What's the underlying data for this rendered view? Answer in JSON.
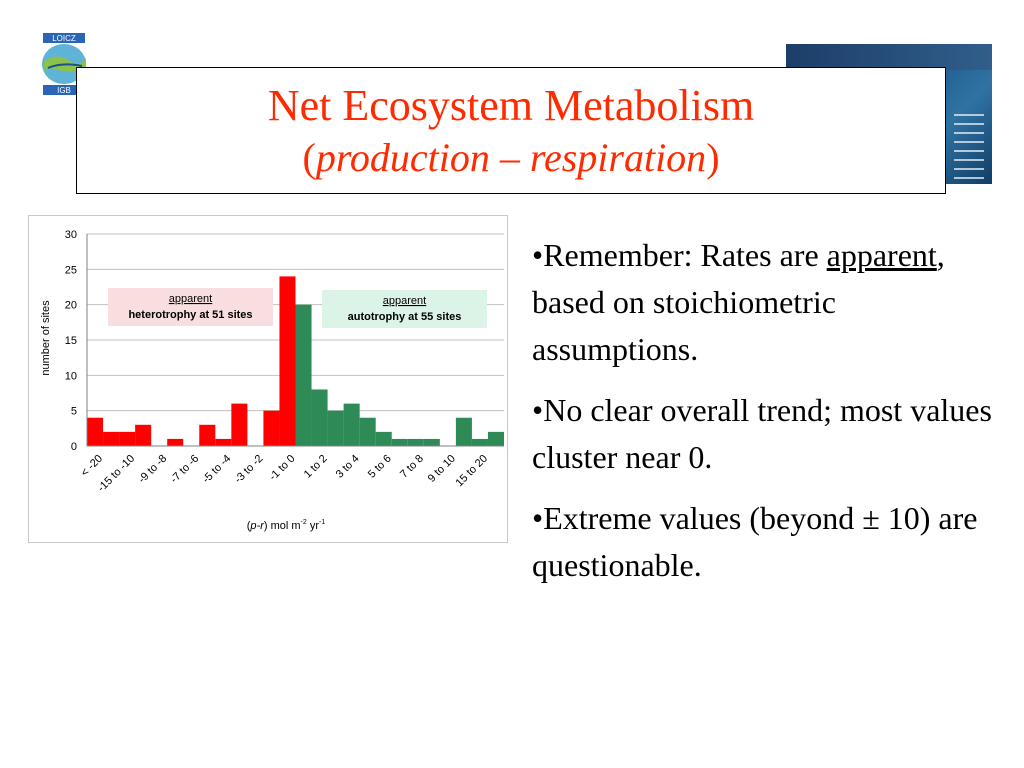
{
  "title": {
    "line1": "Net Ecosystem Metabolism",
    "line2_open": "(",
    "line2_italic": "production – respiration",
    "line2_close": ")"
  },
  "logo": {
    "top_text": "LOICZ",
    "bottom_text": "IGB"
  },
  "bullets": [
    {
      "parts": [
        {
          "text": "•Remember: Rates are "
        },
        {
          "text": "apparent",
          "underline": true
        },
        {
          "text": ", based on stoichiometric assumptions."
        }
      ]
    },
    {
      "parts": [
        {
          "text": "•No clear overall trend; most values cluster near 0."
        }
      ]
    },
    {
      "parts": [
        {
          "text": "•Extreme values (beyond ± 10) are questionable."
        }
      ]
    }
  ],
  "chart_data": {
    "type": "bar",
    "categories": [
      "< -20",
      "",
      "-15 to -10",
      "",
      "-9 to -8",
      "",
      "-7 to -6",
      "",
      "-5 to -4",
      "",
      "-3 to -2",
      "",
      "-1 to 0",
      "",
      "1 to 2",
      "",
      "3 to 4",
      "",
      "5 to 6",
      "",
      "7 to 8",
      "",
      "9 to 10",
      "",
      "15 to 20",
      ""
    ],
    "values": [
      4,
      2,
      2,
      3,
      0,
      1,
      0,
      3,
      1,
      6,
      0,
      5,
      24,
      20,
      8,
      5,
      6,
      4,
      2,
      1,
      1,
      1,
      0,
      4,
      1,
      2
    ],
    "bar_colors": [
      "#ff0000",
      "#ff0000",
      "#ff0000",
      "#ff0000",
      "#ff0000",
      "#ff0000",
      "#ff0000",
      "#ff0000",
      "#ff0000",
      "#ff0000",
      "#ff0000",
      "#ff0000",
      "#ff0000",
      "#2e8b57",
      "#2e8b57",
      "#2e8b57",
      "#2e8b57",
      "#2e8b57",
      "#2e8b57",
      "#2e8b57",
      "#2e8b57",
      "#2e8b57",
      "#2e8b57",
      "#2e8b57",
      "#2e8b57",
      "#2e8b57"
    ],
    "ylim": [
      0,
      30
    ],
    "yticks": [
      0,
      5,
      10,
      15,
      20,
      25,
      30
    ],
    "ylabel": "number of sites",
    "xlabel_parts": {
      "open": "(",
      "italic": "p-r",
      "rest": ") mol m",
      "sup1": "-2",
      "mid": " yr",
      "sup2": "-1"
    },
    "grid": true,
    "annotations": [
      {
        "line1": "apparent",
        "line2": "heterotrophy at 51 sites",
        "color": "#f8dede"
      },
      {
        "line1": "apparent",
        "line2": "autotrophy at 55 sites",
        "color": "#dcf3e8"
      }
    ],
    "colors": {
      "heterotrophy": "#ff0000",
      "autotrophy": "#2e8b57"
    }
  }
}
